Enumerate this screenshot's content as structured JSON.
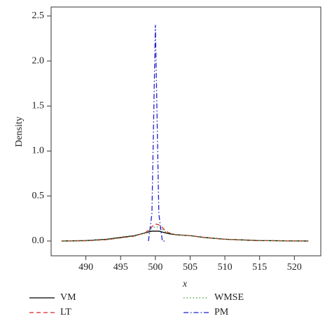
{
  "chart_data": {
    "type": "line",
    "xlabel": "x",
    "ylabel": "Density",
    "x": [
      486.5,
      490,
      493,
      495,
      497,
      498.5,
      499,
      499.5,
      500,
      500.5,
      501,
      501.5,
      502,
      503,
      505,
      507,
      510,
      515,
      522
    ],
    "series": [
      {
        "name": "VM",
        "color": "#000000",
        "dash": "solid",
        "values": [
          0,
          0.005,
          0.02,
          0.04,
          0.06,
          0.09,
          0.1,
          0.11,
          0.11,
          0.11,
          0.1,
          0.09,
          0.08,
          0.07,
          0.06,
          0.04,
          0.02,
          0.005,
          0
        ]
      },
      {
        "name": "LT",
        "color": "#d62728",
        "dash": "dashed",
        "values": [
          0,
          0.003,
          0.015,
          0.035,
          0.055,
          0.09,
          0.12,
          0.16,
          0.19,
          0.18,
          0.15,
          0.11,
          0.09,
          0.07,
          0.06,
          0.04,
          0.02,
          0.005,
          0
        ]
      },
      {
        "name": "WMSE",
        "color": "#2ca02c",
        "dash": "dotted",
        "values": [
          0,
          0.004,
          0.017,
          0.037,
          0.057,
          0.09,
          0.11,
          0.14,
          0.16,
          0.15,
          0.13,
          0.1,
          0.085,
          0.07,
          0.06,
          0.04,
          0.02,
          0.005,
          0
        ]
      },
      {
        "name": "PM",
        "color": "#1f1fd0",
        "dash": "dashdot",
        "values": [
          null,
          null,
          null,
          null,
          null,
          null,
          0,
          0.3,
          2.4,
          0.3,
          0,
          0,
          null,
          null,
          null,
          null,
          null,
          null,
          null
        ]
      }
    ],
    "xlim": [
      485,
      523.8
    ],
    "xticks": [
      490,
      495,
      500,
      505,
      510,
      515,
      520
    ],
    "ylim": [
      -0.164,
      2.6
    ],
    "yticks": [
      {
        "value": 0,
        "label": "0.0"
      },
      {
        "value": 0.5,
        "label": "0.5"
      },
      {
        "value": 1,
        "label": "1.0"
      },
      {
        "value": 1.5,
        "label": "1.5"
      },
      {
        "value": 2,
        "label": "2.0"
      },
      {
        "value": 2.5,
        "label": "2.5"
      }
    ],
    "legend": "bottom"
  }
}
